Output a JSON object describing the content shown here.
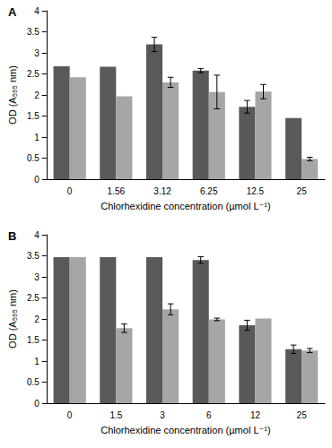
{
  "chart_data": [
    {
      "type": "bar",
      "title": "A",
      "xlabel": "Chlorhexidine concentration (µmol L⁻¹)",
      "ylabel": "OD (A₅₉₅ nm)",
      "categories": [
        "0",
        "1.56",
        "3.12",
        "6.25",
        "12.5",
        "25"
      ],
      "series": [
        {
          "color": "#595959",
          "values": [
            2.68,
            2.67,
            3.2,
            2.58,
            1.72,
            1.45
          ],
          "errors": [
            0,
            0,
            0.17,
            0.05,
            0.15,
            0
          ]
        },
        {
          "color": "#a6a6a6",
          "values": [
            2.42,
            1.97,
            2.3,
            2.07,
            2.08,
            0.48
          ],
          "errors": [
            0,
            0,
            0.12,
            0.4,
            0.17,
            0.04
          ]
        }
      ],
      "ylim": [
        0,
        4
      ],
      "yticks": [
        0,
        0.5,
        1,
        1.5,
        2,
        2.5,
        3,
        3.5,
        4
      ],
      "grid": false
    },
    {
      "type": "bar",
      "title": "B",
      "xlabel": "Chlorhexidine concentration (µmol L⁻¹)",
      "ylabel": "OD (A₅₉₅ nm)",
      "categories": [
        "0",
        "1.5",
        "3",
        "6",
        "12",
        "25"
      ],
      "series": [
        {
          "color": "#595959",
          "values": [
            3.47,
            3.47,
            3.47,
            3.4,
            1.85,
            1.28
          ],
          "errors": [
            0,
            0,
            0,
            0.08,
            0.12,
            0.1
          ]
        },
        {
          "color": "#a6a6a6",
          "values": [
            3.47,
            1.78,
            2.23,
            1.99,
            2.01,
            1.25
          ],
          "errors": [
            0,
            0.1,
            0.13,
            0.03,
            0,
            0.05
          ]
        }
      ],
      "ylim": [
        0,
        4
      ],
      "yticks": [
        0,
        0.5,
        1,
        1.5,
        2,
        2.5,
        3,
        3.5,
        4
      ],
      "grid": false
    }
  ]
}
